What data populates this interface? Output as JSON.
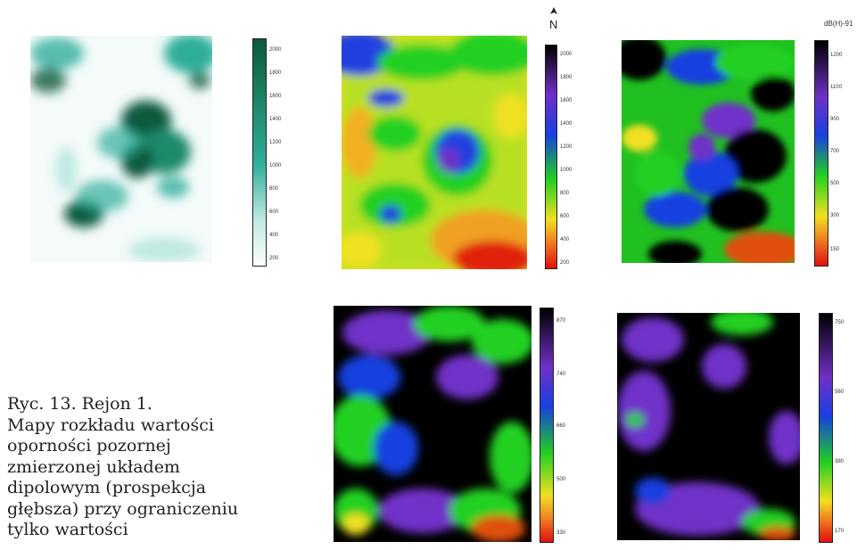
{
  "caption": {
    "lines": [
      "Ryc. 13. Rejon 1.",
      "Mapy rozkładu wartości",
      "oporności pozornej",
      "zmierzonej układem",
      "dipolowym (prospekcja",
      "głębsza) przy ograniczeniu",
      "tylko wartości"
    ]
  },
  "north_label": "N",
  "corner_label": "dB(H)-91",
  "maps": [
    {
      "name": "map-1-teal",
      "palette": "teal",
      "colorbar_ticks": [
        "2000",
        "1800",
        "1600",
        "1400",
        "1200",
        "1000",
        "800",
        "600",
        "400",
        "200"
      ]
    },
    {
      "name": "map-2-spectral",
      "palette": "spectral",
      "colorbar_ticks": [
        "2000",
        "1800",
        "1600",
        "1400",
        "1200",
        "1000",
        "800",
        "600",
        "400",
        "200"
      ]
    },
    {
      "name": "map-3-spectral",
      "palette": "spectral",
      "colorbar_ticks": [
        "1200",
        "1100",
        "900",
        "700",
        "500",
        "300",
        "150"
      ]
    },
    {
      "name": "map-4-spectral",
      "palette": "spectral",
      "colorbar_ticks": [
        "870",
        "740",
        "660",
        "500",
        "330"
      ]
    },
    {
      "name": "map-5-spectral",
      "palette": "spectral",
      "colorbar_ticks": [
        "750",
        "560",
        "380",
        "170"
      ]
    }
  ],
  "colors": {
    "teal_dark": "#0a5a3c",
    "teal_mid": "#2fae9a",
    "teal_light": "#bfe9e2",
    "black": "#000000",
    "purple": "#7030c8",
    "blue": "#1840e0",
    "green": "#20d020",
    "yellow": "#f0e020",
    "orange": "#f08020",
    "red": "#e01010"
  }
}
